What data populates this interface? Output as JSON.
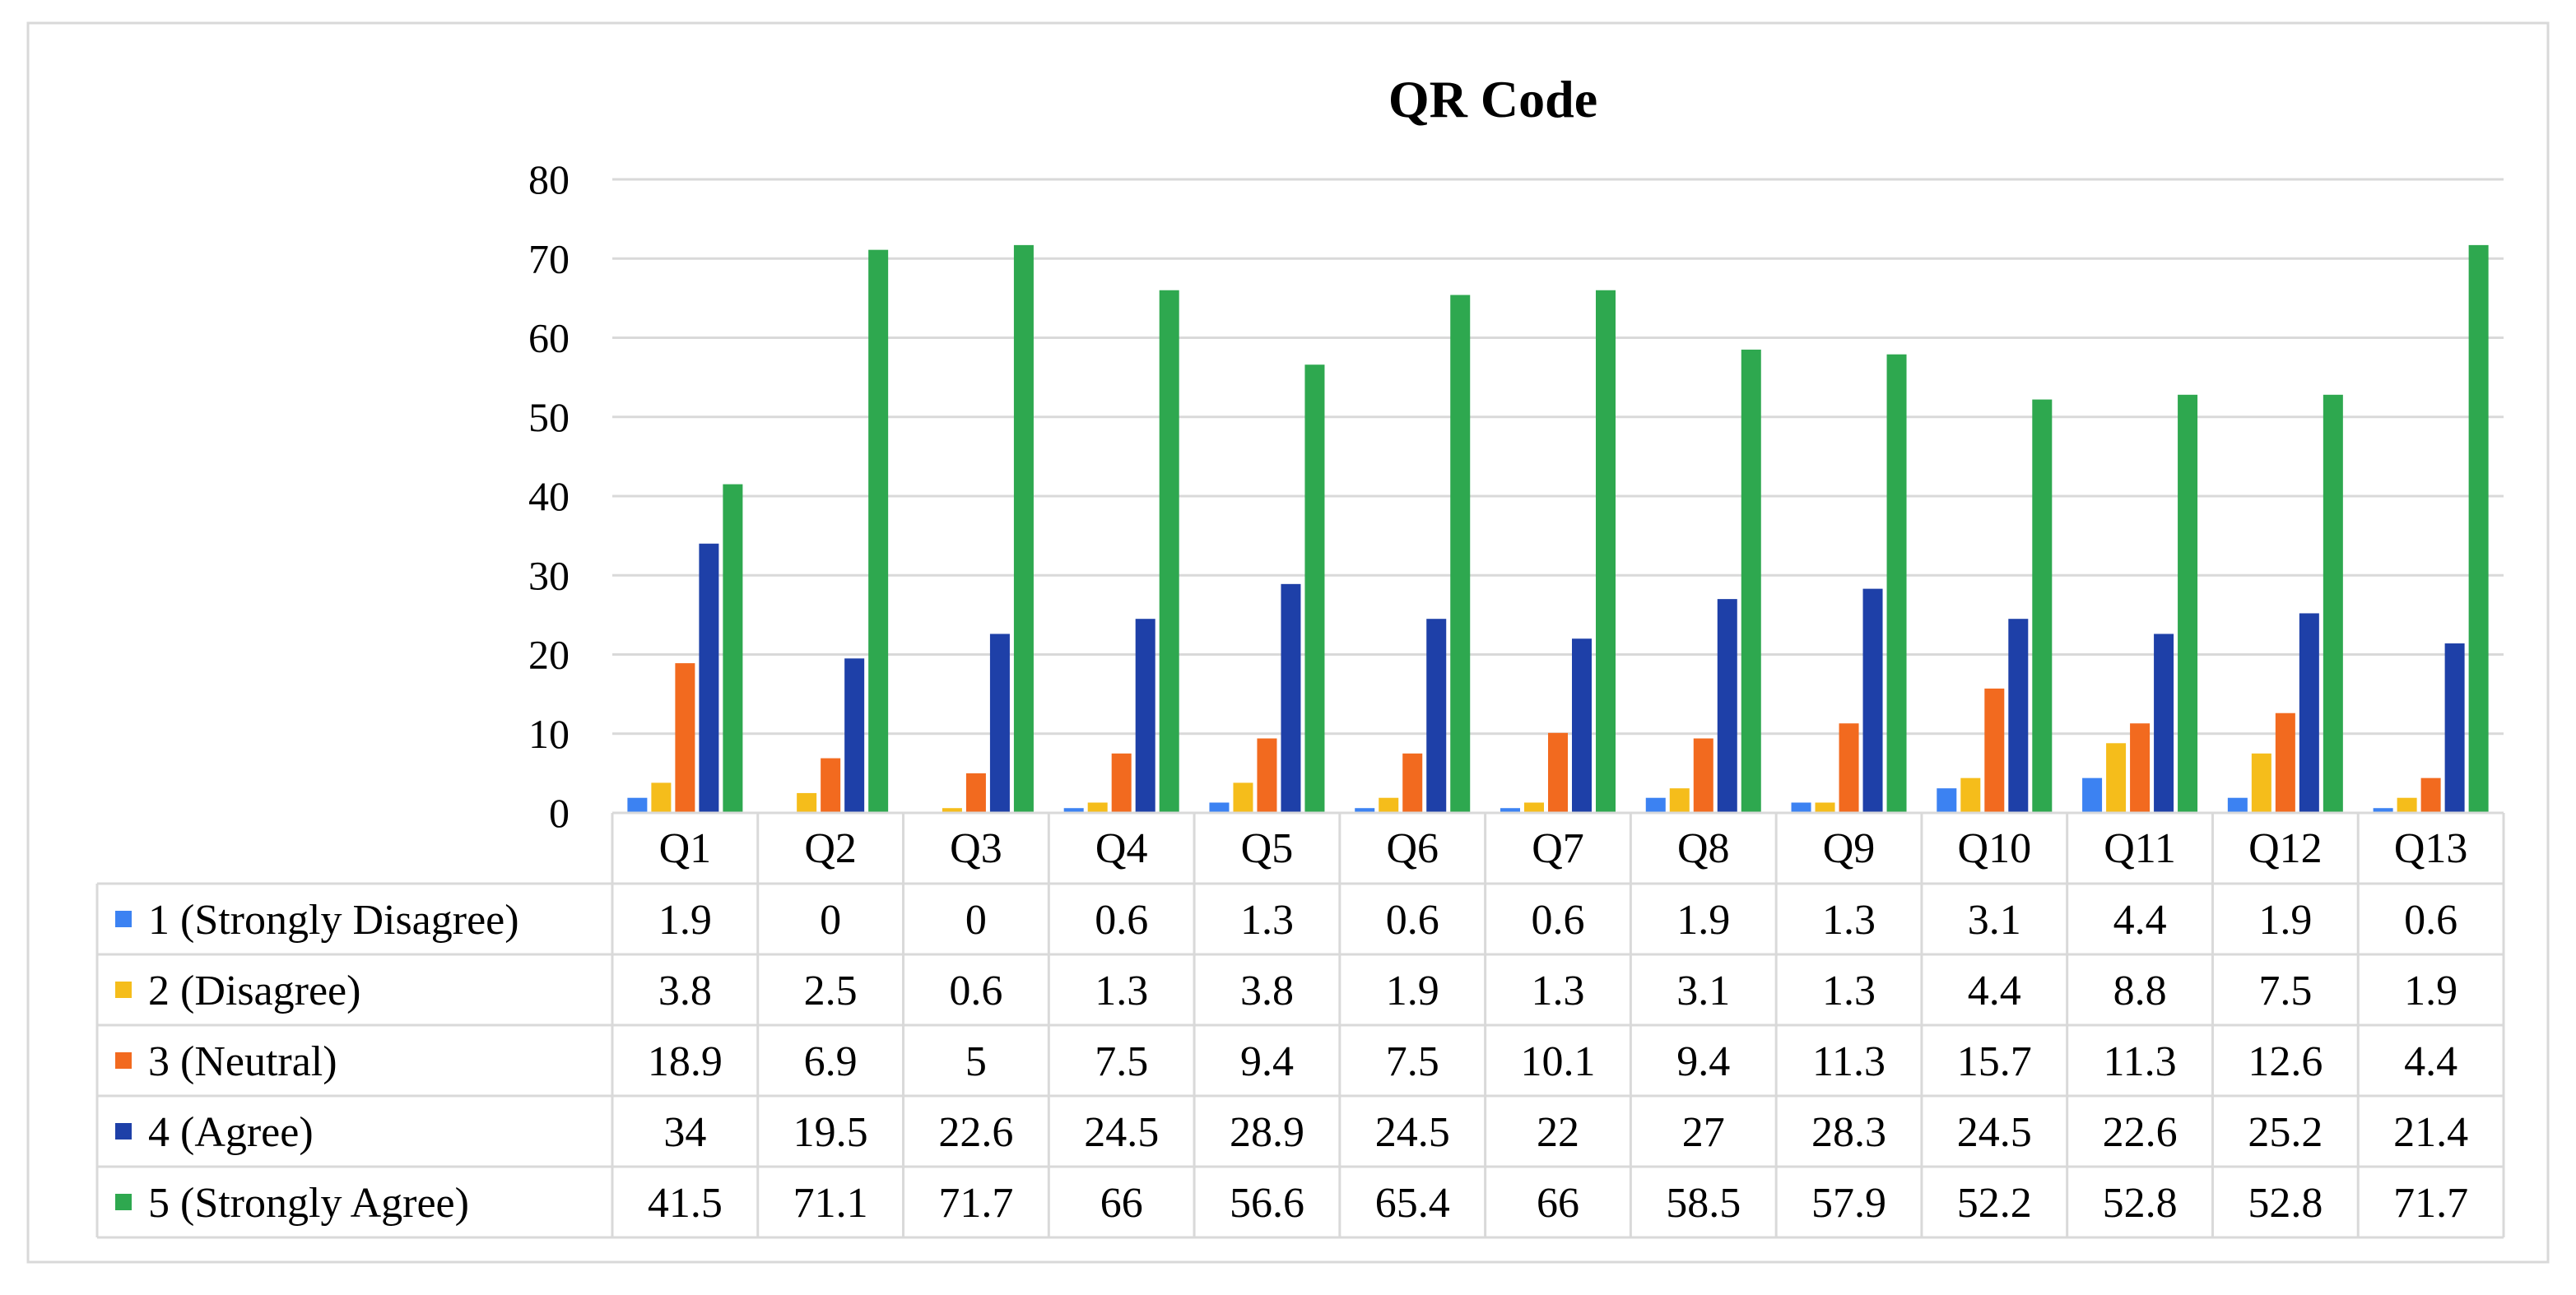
{
  "chart_data": {
    "type": "bar",
    "title": "QR Code",
    "xlabel": "",
    "ylabel": "",
    "ylim": [
      0,
      80
    ],
    "yticks": [
      0,
      10,
      20,
      30,
      40,
      50,
      60,
      70,
      80
    ],
    "grid": true,
    "legend": "table-left",
    "categories": [
      "Q1",
      "Q2",
      "Q3",
      "Q4",
      "Q5",
      "Q6",
      "Q7",
      "Q8",
      "Q9",
      "Q10",
      "Q11",
      "Q12",
      "Q13"
    ],
    "series": [
      {
        "name": "1 (Strongly Disagree)",
        "color": "#3c82f2",
        "values": [
          "1.9",
          "0",
          "0",
          "0.6",
          "1.3",
          "0.6",
          "0.6",
          "1.9",
          "1.3",
          "3.1",
          "4.4",
          "1.9",
          "0.6"
        ]
      },
      {
        "name": "2 (Disagree)",
        "color": "#f5bd1b",
        "values": [
          "3.8",
          "2.5",
          "0.6",
          "1.3",
          "3.8",
          "1.9",
          "1.3",
          "3.1",
          "1.3",
          "4.4",
          "8.8",
          "7.5",
          "1.9"
        ]
      },
      {
        "name": "3 (Neutral)",
        "color": "#f26a1f",
        "values": [
          "18.9",
          "6.9",
          "5",
          "7.5",
          "9.4",
          "7.5",
          "10.1",
          "9.4",
          "11.3",
          "15.7",
          "11.3",
          "12.6",
          "4.4"
        ]
      },
      {
        "name": "4 (Agree)",
        "color": "#1e40a8",
        "values": [
          "34",
          "19.5",
          "22.6",
          "24.5",
          "28.9",
          "24.5",
          "22",
          "27",
          "28.3",
          "24.5",
          "22.6",
          "25.2",
          "21.4"
        ]
      },
      {
        "name": "5 (Strongly Agree)",
        "color": "#2ea84f",
        "values": [
          "41.5",
          "71.1",
          "71.7",
          "66",
          "56.6",
          "65.4",
          "66",
          "58.5",
          "57.9",
          "52.2",
          "52.8",
          "52.8",
          "71.7"
        ]
      }
    ]
  }
}
